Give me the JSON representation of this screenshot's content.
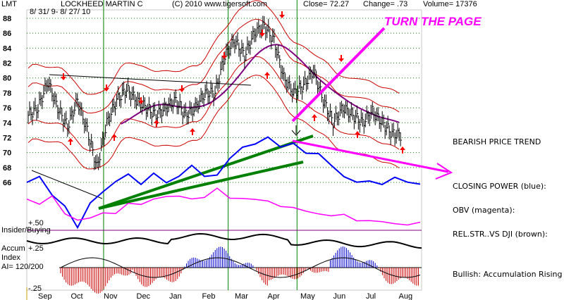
{
  "header": {
    "ticker": "LMT",
    "name": "LOCKHEED MARTIN C",
    "daterange": "8/ 31/ 9- 8/ 27/ 10",
    "copyright": "(C) 2010 www.tigersoft.com",
    "close": "Close= 72.27",
    "change": "Change= .73",
    "volume": "Volume= 17376"
  },
  "annotations": {
    "turn_page": "TURN THE PAGE",
    "bearish": "BEARISH PRICE TREND",
    "closing_power": "CLOSING POWER (blue):",
    "obv": "OBV (magenta):",
    "relstr": "REL.STR..VS DJI (brown):",
    "bullish": "Bullish: Accumulation Rising"
  },
  "indicator_labels": {
    "insider": "Insider/Buying",
    "plus50": "+.50",
    "accum": "Accum",
    "index": "Index",
    "ai": "AI= 120/200",
    "plus25": "+.25",
    "minus25": "-.25"
  },
  "colors": {
    "price": "#000000",
    "bands": "#cc0000",
    "ma": "#800080",
    "closing_power": "#0000ff",
    "obv": "#ff00ff",
    "trendline": "#008000",
    "arrow_up": "#ff0000",
    "annotation": "#ff00ff",
    "grid": "#008000"
  },
  "chart_data": {
    "type": "line",
    "title": "LOCKHEED MARTIN C",
    "y_axis_ticks": [
      88,
      86,
      84,
      82,
      80,
      78,
      76,
      74,
      72,
      70,
      68,
      66
    ],
    "ylim": [
      65,
      89
    ],
    "x_month_labels": [
      "Sep",
      "Oct",
      "Nov",
      "Dec",
      "Jan",
      "Feb",
      "Mar",
      "Apr",
      "May",
      "Jun",
      "Jul",
      "Aug"
    ],
    "price_series": {
      "name": "price",
      "x_month_index": [
        0,
        0.3,
        0.6,
        0.9,
        1.2,
        1.5,
        1.8,
        2.1,
        2.4,
        2.7,
        3.0,
        3.3,
        3.6,
        3.9,
        4.2,
        4.5,
        4.8,
        5.1,
        5.4,
        5.7,
        6.0,
        6.3,
        6.6,
        6.9,
        7.2,
        7.5,
        7.8,
        8.1,
        8.4,
        8.7,
        9.0,
        9.3,
        9.6,
        9.9,
        10.2,
        10.5,
        10.8,
        11.1,
        11.4
      ],
      "values": [
        75,
        76,
        79.5,
        76,
        73.5,
        77,
        73,
        68,
        74,
        77,
        78.5,
        77,
        76,
        75,
        76,
        77,
        75,
        76,
        78,
        78,
        83,
        85,
        83,
        86,
        87,
        85,
        80,
        78,
        79,
        81,
        77,
        74,
        76,
        75,
        74,
        75.5,
        74,
        72.5,
        72.3
      ]
    },
    "closing_power": {
      "name": "CLOSING POWER (blue)",
      "values": [
        66,
        67,
        64,
        63,
        60,
        63,
        65,
        66,
        67,
        66,
        67,
        66,
        67,
        68,
        67,
        67,
        69,
        71,
        71,
        72,
        71,
        71,
        70,
        70,
        68,
        67,
        66,
        66,
        66,
        66.5,
        66,
        66
      ]
    },
    "obv": {
      "name": "OBV (magenta)",
      "values": [
        64,
        63,
        64,
        62,
        61,
        61,
        62,
        62,
        63,
        63,
        64,
        64,
        64,
        64,
        64,
        65,
        64,
        64,
        63.5,
        63.5,
        63,
        62.5,
        62,
        62,
        61.5,
        61.5,
        61,
        61,
        60.5,
        60.5,
        60.5,
        60.5
      ]
    }
  }
}
